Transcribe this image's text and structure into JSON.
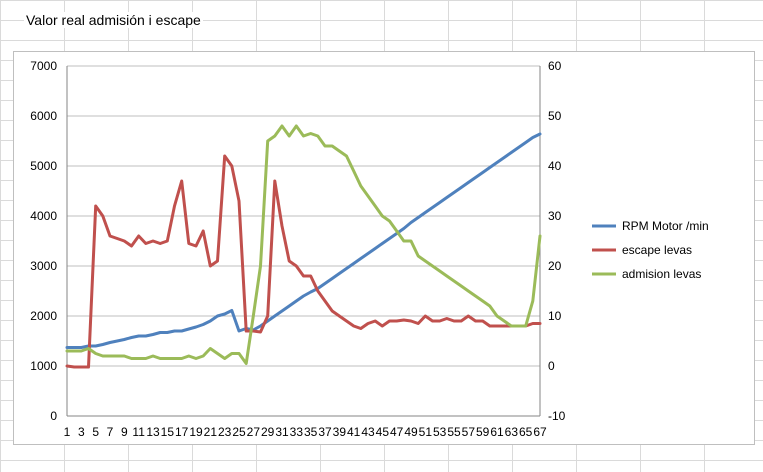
{
  "sheet": {
    "title": "Valor real admisión i escape"
  },
  "colors": {
    "rpm": "#4f81bd",
    "escape": "#c0504d",
    "admision": "#9bbb59",
    "gridline": "#bfbfbf"
  },
  "chart_data": {
    "type": "line",
    "title": "",
    "x": [
      1,
      2,
      3,
      4,
      5,
      6,
      7,
      8,
      9,
      10,
      11,
      12,
      13,
      14,
      15,
      16,
      17,
      18,
      19,
      20,
      21,
      22,
      23,
      24,
      25,
      26,
      27,
      28,
      29,
      30,
      31,
      32,
      33,
      34,
      35,
      36,
      37,
      38,
      39,
      40,
      41,
      42,
      43,
      44,
      45,
      46,
      47,
      48,
      49,
      50,
      51,
      52,
      53,
      54,
      55,
      56,
      57,
      58,
      59,
      60,
      61,
      62,
      63,
      64,
      65,
      66,
      67
    ],
    "x_tick_labels": [
      "1",
      "3",
      "5",
      "7",
      "9",
      "11",
      "13",
      "15",
      "17",
      "19",
      "21",
      "23",
      "25",
      "27",
      "29",
      "31",
      "33",
      "35",
      "37",
      "39",
      "41",
      "43",
      "45",
      "47",
      "49",
      "51",
      "53",
      "55",
      "57",
      "59",
      "61",
      "63",
      "65",
      "67"
    ],
    "y_left": {
      "min": 0,
      "max": 7000,
      "ticks": [
        0,
        1000,
        2000,
        3000,
        4000,
        5000,
        6000,
        7000
      ]
    },
    "y_right": {
      "min": -10,
      "max": 60,
      "ticks": [
        -10,
        0,
        10,
        20,
        30,
        40,
        50,
        60
      ]
    },
    "grid": true,
    "legend_position": "right",
    "series": [
      {
        "name": "RPM Motor  /min",
        "axis": "left",
        "values": [
          1370,
          1370,
          1370,
          1400,
          1400,
          1430,
          1470,
          1500,
          1530,
          1570,
          1600,
          1600,
          1630,
          1670,
          1670,
          1700,
          1700,
          1740,
          1780,
          1830,
          1900,
          2000,
          2040,
          2110,
          1700,
          1750,
          1720,
          1800,
          1900,
          2000,
          2100,
          2200,
          2300,
          2400,
          2480,
          2550,
          2650,
          2750,
          2850,
          2950,
          3050,
          3150,
          3250,
          3350,
          3450,
          3550,
          3650,
          3750,
          3870,
          3970,
          4070,
          4170,
          4270,
          4370,
          4470,
          4570,
          4670,
          4770,
          4870,
          4970,
          5070,
          5170,
          5270,
          5370,
          5470,
          5570,
          5640
        ]
      },
      {
        "name": "escape levas",
        "axis": "right",
        "values": [
          0,
          -0.2,
          -0.2,
          -0.2,
          32,
          30,
          26,
          25.5,
          25,
          24,
          26,
          24.5,
          25,
          24.5,
          25,
          32,
          37,
          24.5,
          24,
          27,
          20,
          21,
          42,
          40,
          33,
          7,
          7,
          6.8,
          10,
          37,
          28,
          21,
          20,
          18,
          18,
          15,
          13,
          11,
          10,
          9,
          8,
          7.5,
          8.5,
          9,
          8,
          9,
          9,
          9.2,
          9,
          8.5,
          10,
          9,
          9,
          9.5,
          9,
          9,
          10,
          9,
          9,
          8,
          8,
          8,
          8,
          8,
          8,
          8.5,
          8.5
        ]
      },
      {
        "name": "admision levas",
        "axis": "right",
        "values": [
          3,
          3,
          3,
          3.5,
          2.5,
          2,
          2,
          2,
          2,
          1.5,
          1.5,
          1.5,
          2,
          1.5,
          1.5,
          1.5,
          1.5,
          2,
          1.5,
          2,
          3.5,
          2.5,
          1.5,
          2.5,
          2.5,
          0.5,
          10,
          20,
          45,
          46,
          48,
          46,
          48,
          46,
          46.5,
          46,
          44,
          44,
          43,
          42,
          39,
          36,
          34,
          32,
          30,
          29,
          27,
          25,
          25,
          22,
          21,
          20,
          19,
          18,
          17,
          16,
          15,
          14,
          13,
          12,
          10,
          9,
          8,
          8,
          8,
          13,
          26
        ]
      }
    ]
  }
}
